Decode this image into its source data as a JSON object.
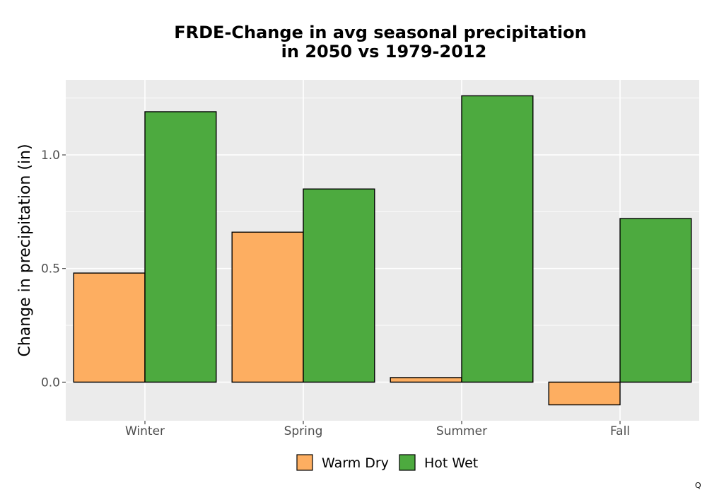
{
  "chart_data": {
    "type": "bar",
    "title": [
      "FRDE-Change in avg seasonal precipitation",
      "in 2050 vs 1979-2012"
    ],
    "xlabel": "",
    "ylabel": "Change in precipitation (in)",
    "categories": [
      "Winter",
      "Spring",
      "Summer",
      "Fall"
    ],
    "series": [
      {
        "name": "Warm Dry",
        "color": "#fdae61",
        "values": [
          0.48,
          0.66,
          0.02,
          -0.1
        ]
      },
      {
        "name": "Hot Wet",
        "color": "#4daa3f",
        "values": [
          1.19,
          0.85,
          1.26,
          0.72
        ]
      }
    ],
    "ylim": [
      -0.17,
      1.33
    ],
    "yticks": [
      0.0,
      0.5,
      1.0
    ],
    "ytick_labels": [
      "0.0",
      "0.5",
      "1.0"
    ],
    "grid": true,
    "legend_position": "bottom",
    "background_color": "#ebebeb"
  },
  "corner_mark": "Q"
}
